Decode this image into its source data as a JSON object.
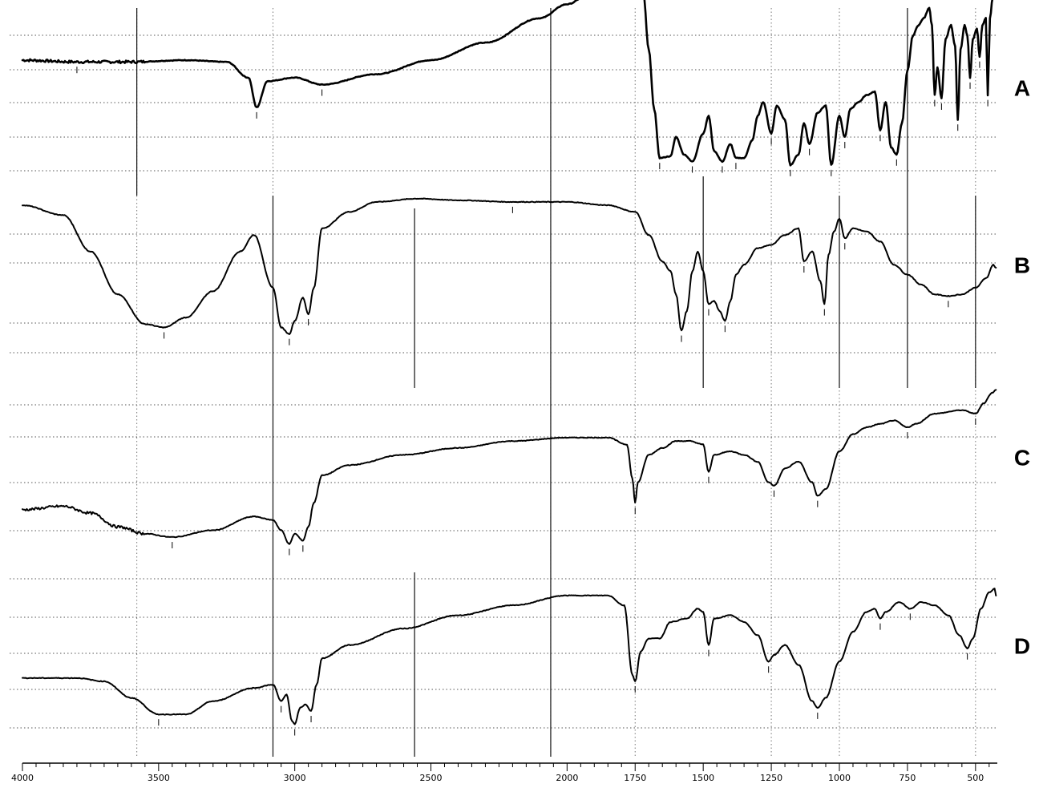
{
  "chart_data": {
    "type": "line",
    "title": "",
    "xlabel": "",
    "ylabel": "",
    "x_reversed": true,
    "xlim": [
      4000,
      420
    ],
    "x_ticks": [
      4000,
      3500,
      3000,
      2500,
      2000,
      1750,
      1500,
      1250,
      1000,
      750,
      500
    ],
    "grid": true,
    "series": [
      {
        "name": "A",
        "points": [
          [
            4000,
            0.72
          ],
          [
            3800,
            0.71
          ],
          [
            3600,
            0.71
          ],
          [
            3400,
            0.72
          ],
          [
            3250,
            0.71
          ],
          [
            3170,
            0.62
          ],
          [
            3140,
            0.45
          ],
          [
            3100,
            0.6
          ],
          [
            3000,
            0.62
          ],
          [
            2900,
            0.58
          ],
          [
            2700,
            0.64
          ],
          [
            2500,
            0.72
          ],
          [
            2300,
            0.82
          ],
          [
            2100,
            0.96
          ],
          [
            2000,
            1.04
          ],
          [
            1900,
            1.12
          ],
          [
            1780,
            1.24
          ],
          [
            1750,
            1.18
          ],
          [
            1720,
            1.1
          ],
          [
            1700,
            0.78
          ],
          [
            1680,
            0.44
          ],
          [
            1660,
            0.16
          ],
          [
            1620,
            0.17
          ],
          [
            1600,
            0.28
          ],
          [
            1570,
            0.18
          ],
          [
            1540,
            0.14
          ],
          [
            1500,
            0.3
          ],
          [
            1480,
            0.4
          ],
          [
            1460,
            0.2
          ],
          [
            1430,
            0.14
          ],
          [
            1400,
            0.24
          ],
          [
            1380,
            0.16
          ],
          [
            1350,
            0.16
          ],
          [
            1320,
            0.26
          ],
          [
            1300,
            0.4
          ],
          [
            1280,
            0.48
          ],
          [
            1250,
            0.3
          ],
          [
            1230,
            0.46
          ],
          [
            1200,
            0.38
          ],
          [
            1180,
            0.12
          ],
          [
            1150,
            0.18
          ],
          [
            1130,
            0.36
          ],
          [
            1110,
            0.24
          ],
          [
            1080,
            0.42
          ],
          [
            1050,
            0.46
          ],
          [
            1030,
            0.12
          ],
          [
            1000,
            0.4
          ],
          [
            980,
            0.28
          ],
          [
            960,
            0.44
          ],
          [
            930,
            0.48
          ],
          [
            900,
            0.52
          ],
          [
            870,
            0.54
          ],
          [
            850,
            0.32
          ],
          [
            830,
            0.48
          ],
          [
            810,
            0.22
          ],
          [
            790,
            0.18
          ],
          [
            770,
            0.36
          ],
          [
            750,
            0.66
          ],
          [
            730,
            0.86
          ],
          [
            710,
            0.92
          ],
          [
            690,
            0.96
          ],
          [
            670,
            1.02
          ],
          [
            660,
            0.92
          ],
          [
            650,
            0.52
          ],
          [
            640,
            0.68
          ],
          [
            625,
            0.5
          ],
          [
            610,
            0.84
          ],
          [
            590,
            0.92
          ],
          [
            575,
            0.8
          ],
          [
            565,
            0.38
          ],
          [
            555,
            0.78
          ],
          [
            540,
            0.92
          ],
          [
            530,
            0.86
          ],
          [
            520,
            0.62
          ],
          [
            510,
            0.84
          ],
          [
            495,
            0.9
          ],
          [
            485,
            0.74
          ],
          [
            475,
            0.92
          ],
          [
            462,
            0.96
          ],
          [
            455,
            0.52
          ],
          [
            447,
            0.96
          ],
          [
            437,
            1.08
          ],
          [
            425,
            1.14
          ]
        ]
      },
      {
        "name": "B",
        "points": [
          [
            4000,
            1.0
          ],
          [
            3850,
            0.94
          ],
          [
            3750,
            0.72
          ],
          [
            3650,
            0.46
          ],
          [
            3550,
            0.28
          ],
          [
            3480,
            0.26
          ],
          [
            3400,
            0.32
          ],
          [
            3300,
            0.48
          ],
          [
            3200,
            0.72
          ],
          [
            3150,
            0.82
          ],
          [
            3080,
            0.5
          ],
          [
            3050,
            0.26
          ],
          [
            3020,
            0.22
          ],
          [
            3000,
            0.3
          ],
          [
            2970,
            0.44
          ],
          [
            2950,
            0.34
          ],
          [
            2930,
            0.5
          ],
          [
            2900,
            0.86
          ],
          [
            2800,
            0.96
          ],
          [
            2700,
            1.02
          ],
          [
            2550,
            1.04
          ],
          [
            2400,
            1.03
          ],
          [
            2200,
            1.02
          ],
          [
            2000,
            1.02
          ],
          [
            1850,
            1.0
          ],
          [
            1750,
            0.96
          ],
          [
            1700,
            0.82
          ],
          [
            1650,
            0.66
          ],
          [
            1620,
            0.6
          ],
          [
            1600,
            0.46
          ],
          [
            1580,
            0.24
          ],
          [
            1560,
            0.36
          ],
          [
            1540,
            0.6
          ],
          [
            1520,
            0.72
          ],
          [
            1500,
            0.6
          ],
          [
            1480,
            0.4
          ],
          [
            1460,
            0.42
          ],
          [
            1440,
            0.36
          ],
          [
            1420,
            0.3
          ],
          [
            1400,
            0.42
          ],
          [
            1380,
            0.58
          ],
          [
            1350,
            0.64
          ],
          [
            1300,
            0.74
          ],
          [
            1250,
            0.76
          ],
          [
            1200,
            0.82
          ],
          [
            1150,
            0.86
          ],
          [
            1130,
            0.66
          ],
          [
            1100,
            0.72
          ],
          [
            1070,
            0.54
          ],
          [
            1055,
            0.4
          ],
          [
            1040,
            0.7
          ],
          [
            1020,
            0.84
          ],
          [
            1000,
            0.92
          ],
          [
            980,
            0.8
          ],
          [
            950,
            0.86
          ],
          [
            900,
            0.84
          ],
          [
            850,
            0.78
          ],
          [
            800,
            0.64
          ],
          [
            750,
            0.58
          ],
          [
            700,
            0.52
          ],
          [
            650,
            0.46
          ],
          [
            600,
            0.45
          ],
          [
            550,
            0.46
          ],
          [
            500,
            0.5
          ],
          [
            460,
            0.56
          ],
          [
            435,
            0.64
          ],
          [
            425,
            0.62
          ]
        ]
      },
      {
        "name": "C",
        "points": [
          [
            4000,
            0.3
          ],
          [
            3850,
            0.32
          ],
          [
            3750,
            0.28
          ],
          [
            3650,
            0.2
          ],
          [
            3550,
            0.16
          ],
          [
            3450,
            0.14
          ],
          [
            3300,
            0.18
          ],
          [
            3150,
            0.26
          ],
          [
            3080,
            0.24
          ],
          [
            3050,
            0.18
          ],
          [
            3020,
            0.1
          ],
          [
            3000,
            0.16
          ],
          [
            2970,
            0.12
          ],
          [
            2950,
            0.2
          ],
          [
            2930,
            0.34
          ],
          [
            2900,
            0.5
          ],
          [
            2800,
            0.56
          ],
          [
            2600,
            0.62
          ],
          [
            2400,
            0.66
          ],
          [
            2200,
            0.7
          ],
          [
            2000,
            0.72
          ],
          [
            1850,
            0.72
          ],
          [
            1780,
            0.68
          ],
          [
            1760,
            0.48
          ],
          [
            1750,
            0.34
          ],
          [
            1740,
            0.46
          ],
          [
            1700,
            0.62
          ],
          [
            1650,
            0.66
          ],
          [
            1600,
            0.7
          ],
          [
            1550,
            0.7
          ],
          [
            1500,
            0.68
          ],
          [
            1480,
            0.52
          ],
          [
            1460,
            0.62
          ],
          [
            1400,
            0.64
          ],
          [
            1350,
            0.62
          ],
          [
            1300,
            0.58
          ],
          [
            1260,
            0.46
          ],
          [
            1240,
            0.44
          ],
          [
            1200,
            0.54
          ],
          [
            1150,
            0.58
          ],
          [
            1100,
            0.46
          ],
          [
            1080,
            0.38
          ],
          [
            1050,
            0.42
          ],
          [
            1000,
            0.64
          ],
          [
            950,
            0.74
          ],
          [
            900,
            0.78
          ],
          [
            850,
            0.8
          ],
          [
            800,
            0.82
          ],
          [
            750,
            0.78
          ],
          [
            720,
            0.8
          ],
          [
            650,
            0.86
          ],
          [
            550,
            0.88
          ],
          [
            500,
            0.86
          ],
          [
            470,
            0.92
          ],
          [
            440,
            0.98
          ],
          [
            425,
            1.0
          ]
        ]
      },
      {
        "name": "D",
        "points": [
          [
            4000,
            0.36
          ],
          [
            3800,
            0.36
          ],
          [
            3700,
            0.34
          ],
          [
            3600,
            0.24
          ],
          [
            3500,
            0.14
          ],
          [
            3400,
            0.14
          ],
          [
            3300,
            0.22
          ],
          [
            3150,
            0.3
          ],
          [
            3080,
            0.32
          ],
          [
            3050,
            0.22
          ],
          [
            3030,
            0.26
          ],
          [
            3010,
            0.1
          ],
          [
            3000,
            0.08
          ],
          [
            2980,
            0.18
          ],
          [
            2960,
            0.2
          ],
          [
            2940,
            0.16
          ],
          [
            2920,
            0.32
          ],
          [
            2900,
            0.48
          ],
          [
            2800,
            0.56
          ],
          [
            2600,
            0.66
          ],
          [
            2400,
            0.74
          ],
          [
            2200,
            0.8
          ],
          [
            2000,
            0.86
          ],
          [
            1850,
            0.86
          ],
          [
            1790,
            0.8
          ],
          [
            1760,
            0.38
          ],
          [
            1750,
            0.34
          ],
          [
            1730,
            0.52
          ],
          [
            1700,
            0.6
          ],
          [
            1660,
            0.6
          ],
          [
            1620,
            0.7
          ],
          [
            1560,
            0.72
          ],
          [
            1520,
            0.78
          ],
          [
            1500,
            0.76
          ],
          [
            1480,
            0.56
          ],
          [
            1460,
            0.72
          ],
          [
            1400,
            0.74
          ],
          [
            1350,
            0.7
          ],
          [
            1300,
            0.62
          ],
          [
            1260,
            0.46
          ],
          [
            1240,
            0.5
          ],
          [
            1200,
            0.56
          ],
          [
            1150,
            0.44
          ],
          [
            1100,
            0.22
          ],
          [
            1080,
            0.18
          ],
          [
            1050,
            0.24
          ],
          [
            1000,
            0.46
          ],
          [
            950,
            0.64
          ],
          [
            900,
            0.76
          ],
          [
            870,
            0.78
          ],
          [
            850,
            0.72
          ],
          [
            830,
            0.76
          ],
          [
            780,
            0.82
          ],
          [
            740,
            0.78
          ],
          [
            700,
            0.82
          ],
          [
            650,
            0.8
          ],
          [
            600,
            0.74
          ],
          [
            560,
            0.62
          ],
          [
            530,
            0.54
          ],
          [
            510,
            0.6
          ],
          [
            480,
            0.78
          ],
          [
            450,
            0.88
          ],
          [
            430,
            0.9
          ],
          [
            425,
            0.86
          ]
        ]
      }
    ]
  }
}
